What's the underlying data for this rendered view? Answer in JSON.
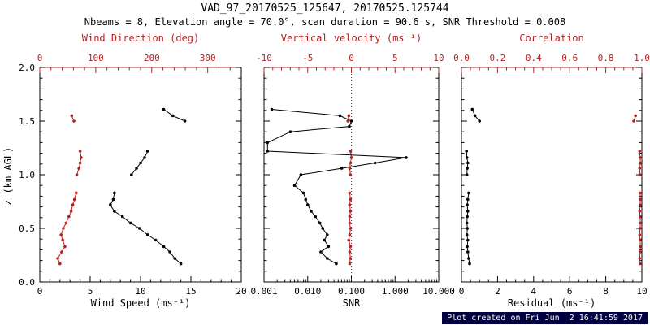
{
  "header": {
    "title": "VAD_97_20170525_125647, 20170525.125744",
    "subtitle": "Nbeams = 8, Elevation angle = 70.0°, scan duration = 90.6 s, SNR Threshold = 0.008"
  },
  "footer": {
    "text": "Plot created on Fri Jun  2 16:41:59 2017"
  },
  "colors": {
    "red": "#b22222",
    "axis": "#000000",
    "background": "#ffffff",
    "footer_bg": "#000041",
    "footer_fg": "#ffffdd"
  },
  "chart_data": [
    {
      "type": "line",
      "panel": "wind",
      "title_top": "Wind Direction (deg)",
      "title_bottom": "Wind Speed (ms⁻¹)",
      "ylabel": "z (km AGL)",
      "x_bottom": {
        "min": 0,
        "max": 20,
        "scale": "linear",
        "ticks": [
          0,
          5,
          10,
          15,
          20
        ],
        "tick_labels": [
          "0",
          "5",
          "10",
          "15",
          "20"
        ],
        "minor_step": 1
      },
      "x_top": {
        "min": 0,
        "max": 360,
        "scale": "linear",
        "color": "red",
        "ticks": [
          0,
          100,
          200,
          300
        ],
        "tick_labels": [
          "0",
          "100",
          "200",
          "300"
        ],
        "minor_step": 20
      },
      "y": {
        "min": 0,
        "max": 2,
        "ticks": [
          0,
          0.5,
          1,
          1.5,
          2
        ],
        "tick_labels": [
          "0.0",
          "0.5",
          "1.0",
          "1.5",
          "2.0"
        ],
        "minor_step": 0.1,
        "show_labels": true
      },
      "series": [
        {
          "name": "wind_speed",
          "color": "black",
          "axis": "bottom",
          "clusters": [
            {
              "z": [
                0.17,
                0.22,
                0.28,
                0.33,
                0.39,
                0.44,
                0.5,
                0.55,
                0.61,
                0.66,
                0.72,
                0.77,
                0.83
              ],
              "v": [
                14.0,
                13.4,
                12.9,
                12.3,
                11.5,
                10.7,
                9.9,
                9.0,
                8.2,
                7.4,
                7.0,
                7.3,
                7.4
              ]
            },
            {
              "z": [
                1.0,
                1.06,
                1.11,
                1.16,
                1.22
              ],
              "v": [
                9.1,
                9.6,
                10.0,
                10.4,
                10.7
              ]
            },
            {
              "z": [
                1.5,
                1.55,
                1.61
              ],
              "v": [
                14.4,
                13.2,
                12.3
              ]
            }
          ]
        },
        {
          "name": "wind_direction",
          "color": "red",
          "axis": "top",
          "clusters": [
            {
              "z": [
                0.17,
                0.22,
                0.28,
                0.33,
                0.39,
                0.44,
                0.5,
                0.55,
                0.61,
                0.66,
                0.72,
                0.77,
                0.83
              ],
              "v": [
                36,
                32,
                39,
                45,
                41,
                38,
                42,
                47,
                52,
                56,
                59,
                62,
                65
              ]
            },
            {
              "z": [
                1.0,
                1.06,
                1.11,
                1.16,
                1.22
              ],
              "v": [
                66,
                70,
                72,
                74,
                72
              ]
            },
            {
              "z": [
                1.5,
                1.55
              ],
              "v": [
                61,
                57
              ]
            }
          ]
        }
      ]
    },
    {
      "type": "line",
      "panel": "snr",
      "title_top": "Vertical velocity (ms⁻¹)",
      "title_bottom": "SNR",
      "x_bottom": {
        "min": 0.001,
        "max": 10,
        "scale": "log",
        "ticks": [
          0.001,
          0.01,
          0.1,
          1,
          10
        ],
        "tick_labels": [
          "0.001",
          "0.010",
          "0.100",
          "1.000",
          "10.000"
        ]
      },
      "x_top": {
        "min": -10,
        "max": 10,
        "scale": "linear",
        "color": "red",
        "ticks": [
          -10,
          -5,
          0,
          5,
          10
        ],
        "tick_labels": [
          "-10",
          "-5",
          "0",
          "5",
          "10"
        ],
        "minor_step": 1
      },
      "y": {
        "min": 0,
        "max": 2,
        "ticks": [
          0,
          0.5,
          1,
          1.5,
          2
        ],
        "minor_step": 0.1,
        "show_labels": false
      },
      "ref_line": {
        "axis": "top",
        "value": 0
      },
      "series": [
        {
          "name": "snr",
          "color": "black",
          "axis": "bottom",
          "clusters": [
            {
              "z": [
                0.17,
                0.22,
                0.28,
                0.33,
                0.39,
                0.44,
                0.5,
                0.55,
                0.61,
                0.66,
                0.72,
                0.77,
                0.83,
                0.9,
                1.0,
                1.06,
                1.11,
                1.16,
                1.22,
                1.3,
                1.4,
                1.45,
                1.5,
                1.55,
                1.61
              ],
              "v": [
                0.045,
                0.028,
                0.02,
                0.03,
                0.024,
                0.028,
                0.022,
                0.019,
                0.015,
                0.012,
                0.01,
                0.009,
                0.008,
                0.005,
                0.007,
                0.06,
                0.35,
                1.8,
                0.0012,
                0.0012,
                0.004,
                0.09,
                0.1,
                0.055,
                0.0015
              ]
            }
          ]
        },
        {
          "name": "vertical_velocity",
          "color": "red",
          "axis": "top",
          "clusters": [
            {
              "z": [
                0.17,
                0.22,
                0.28,
                0.33,
                0.39,
                0.44,
                0.5,
                0.55,
                0.61,
                0.66,
                0.72,
                0.77,
                0.83
              ],
              "v": [
                -0.2,
                -0.1,
                -0.2,
                -0.1,
                -0.3,
                -0.2,
                -0.1,
                -0.2,
                -0.2,
                -0.1,
                -0.2,
                -0.1,
                -0.2
              ]
            },
            {
              "z": [
                1.0,
                1.06,
                1.11,
                1.16,
                1.22
              ],
              "v": [
                -0.1,
                -0.2,
                -0.1,
                0.0,
                -0.1
              ]
            },
            {
              "z": [
                1.5,
                1.55
              ],
              "v": [
                -0.4,
                -0.3
              ]
            }
          ]
        }
      ]
    },
    {
      "type": "line",
      "panel": "residual",
      "title_top": "Correlation",
      "title_bottom": "Residual (ms⁻¹)",
      "x_bottom": {
        "min": 0,
        "max": 10,
        "scale": "linear",
        "ticks": [
          0,
          2,
          4,
          6,
          8,
          10
        ],
        "tick_labels": [
          "0",
          "2",
          "4",
          "6",
          "8",
          "10"
        ],
        "minor_step": 0.5
      },
      "x_top": {
        "min": 0,
        "max": 1,
        "scale": "linear",
        "color": "red",
        "ticks": [
          0,
          0.2,
          0.4,
          0.6,
          0.8,
          1
        ],
        "tick_labels": [
          "0.0",
          "0.2",
          "0.4",
          "0.6",
          "0.8",
          "1.0"
        ],
        "minor_step": 0.05
      },
      "y": {
        "min": 0,
        "max": 2,
        "ticks": [
          0,
          0.5,
          1,
          1.5,
          2
        ],
        "minor_step": 0.1,
        "show_labels": false
      },
      "series": [
        {
          "name": "residual",
          "color": "black",
          "axis": "bottom",
          "clusters": [
            {
              "z": [
                0.17,
                0.22,
                0.28,
                0.33,
                0.39,
                0.44,
                0.5,
                0.55,
                0.61,
                0.66,
                0.72,
                0.77,
                0.83
              ],
              "v": [
                0.45,
                0.4,
                0.35,
                0.32,
                0.35,
                0.3,
                0.33,
                0.3,
                0.32,
                0.35,
                0.32,
                0.35,
                0.4
              ]
            },
            {
              "z": [
                1.0,
                1.06,
                1.11,
                1.16,
                1.22
              ],
              "v": [
                0.3,
                0.32,
                0.35,
                0.3,
                0.28
              ]
            },
            {
              "z": [
                1.5,
                1.55,
                1.61
              ],
              "v": [
                1.0,
                0.75,
                0.6
              ]
            }
          ]
        },
        {
          "name": "correlation",
          "color": "red",
          "axis": "top",
          "clusters": [
            {
              "z": [
                0.17,
                0.22,
                0.28,
                0.33,
                0.39,
                0.44,
                0.5,
                0.55,
                0.61,
                0.66,
                0.72,
                0.77,
                0.83
              ],
              "v": [
                0.99,
                0.988,
                0.99,
                0.992,
                0.99,
                0.988,
                0.99,
                0.992,
                0.99,
                0.988,
                0.99,
                0.992,
                0.99
              ]
            },
            {
              "z": [
                1.0,
                1.06,
                1.11,
                1.16,
                1.22
              ],
              "v": [
                0.99,
                0.988,
                0.992,
                0.99,
                0.988
              ]
            },
            {
              "z": [
                1.5,
                1.55
              ],
              "v": [
                0.955,
                0.965
              ]
            }
          ]
        }
      ]
    }
  ]
}
